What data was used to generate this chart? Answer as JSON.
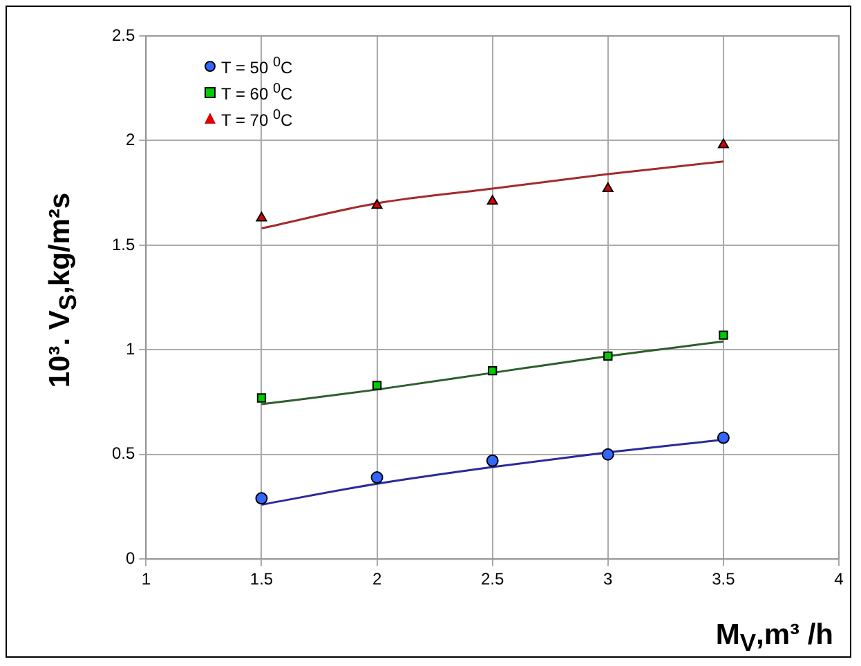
{
  "chart_data": {
    "type": "scatter",
    "xlabel": "M$_{V}$,m³ /h",
    "ylabel": "10³. V$_{S}$,kg/m²s",
    "xlim": [
      1,
      4
    ],
    "xticks": [
      1,
      1.5,
      2,
      2.5,
      3,
      3.5,
      4
    ],
    "ylim": [
      0,
      2.5
    ],
    "yticks": [
      0,
      0.5,
      1,
      1.5,
      2,
      2.5
    ],
    "grid": true,
    "legend": "top left",
    "series": [
      {
        "name": "T = 50 $^{0}$C",
        "color": "#3366ff",
        "marker": "circle",
        "x": [
          1.5,
          2,
          2.5,
          3,
          3.5
        ],
        "values": [
          0.29,
          0.39,
          0.47,
          0.5,
          0.58
        ]
      },
      {
        "name": "T = 60 $^{0}$C",
        "color": "#00cc00",
        "marker": "square",
        "x": [
          1.5,
          2,
          2.5,
          3,
          3.5
        ],
        "values": [
          0.77,
          0.83,
          0.9,
          0.97,
          1.07
        ]
      },
      {
        "name": "T = 70 $^{0}$C",
        "color": "#dd0000",
        "marker": "triangle",
        "x": [
          1.5,
          2,
          2.5,
          3,
          3.5
        ],
        "values": [
          1.63,
          1.69,
          1.71,
          1.77,
          1.98
        ]
      },
      {
        "type": "line",
        "color": "#2a2a9a",
        "marker": "none",
        "x": [
          1.5,
          2,
          2.5,
          3,
          3.5
        ],
        "values": [
          0.26,
          0.36,
          0.44,
          0.51,
          0.57
        ]
      },
      {
        "type": "line",
        "color": "#2e5e2e",
        "marker": "none",
        "x": [
          1.5,
          2,
          2.5,
          3,
          3.5
        ],
        "values": [
          0.74,
          0.81,
          0.89,
          0.97,
          1.04
        ]
      },
      {
        "type": "line",
        "color": "#a52a2a",
        "marker": "none",
        "x": [
          1.5,
          2,
          2.5,
          3,
          3.5
        ],
        "values": [
          1.58,
          1.7,
          1.77,
          1.84,
          1.9
        ]
      }
    ]
  }
}
